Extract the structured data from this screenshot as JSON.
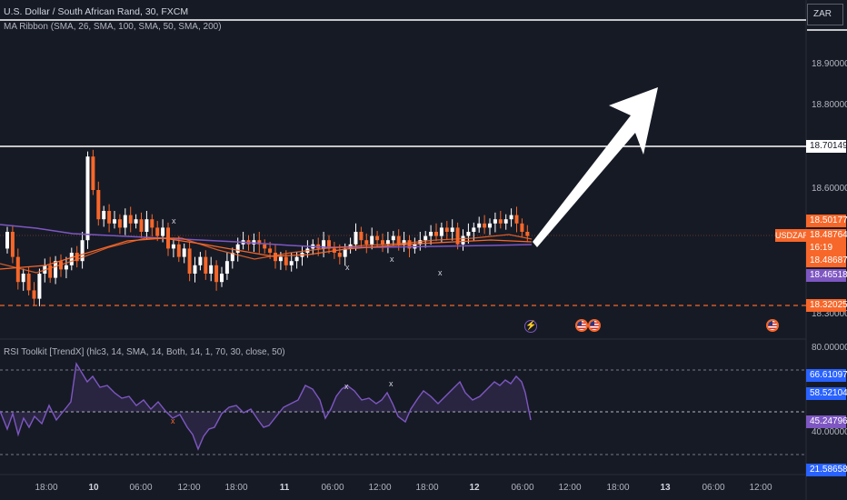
{
  "header": {
    "title": "U.S. Dollar / South African Rand, 30, FXCM",
    "indicator": "MA Ribbon (SMA, 26, SMA, 100, SMA, 50, SMA, 200)",
    "rsi_indicator": "RSI Toolkit [TrendX] (hlc3, 14, SMA, 14, Both, 14, 1, 70, 30, close, 50)"
  },
  "currency_button": "ZAR",
  "price_axis": {
    "ticks": [
      "18.90000",
      "18.80000",
      "18.60000",
      "18.30000"
    ],
    "tick_values": [
      18.9,
      18.8,
      18.6,
      18.3
    ],
    "labels": {
      "line_level": "18.70149",
      "price1": "18.50177",
      "price2": "18.48764",
      "countdown": "16:19",
      "price3": "18.48687",
      "ma_value": "18.46518",
      "dashed_level": "18.32025"
    },
    "symbol_tag": "USDZAR"
  },
  "rsi_axis": {
    "ticks": [
      "80.00000",
      "40.00000"
    ],
    "labels": {
      "upper": "66.61097",
      "mid": "58.52104",
      "value": "45.24796",
      "lower": "21.58658"
    }
  },
  "time_axis": [
    "18:00",
    "10",
    "06:00",
    "12:00",
    "18:00",
    "11",
    "06:00",
    "12:00",
    "18:00",
    "12",
    "06:00",
    "12:00",
    "18:00",
    "13",
    "06:00",
    "12:00"
  ],
  "time_axis_bold": [
    false,
    true,
    false,
    false,
    false,
    true,
    false,
    false,
    false,
    true,
    false,
    false,
    false,
    true,
    false,
    false
  ],
  "markers": {
    "x": "x"
  },
  "colors": {
    "background": "#161a25",
    "up_candle": "#ffffff",
    "down_candle": "#f7672a",
    "ma_fast": "#f7672a",
    "ma_slow": "#7e57c2",
    "rsi_line": "#7e57c2",
    "level_line": "#ffffff",
    "dashed_level": "#f7672a"
  },
  "icons": [
    "lightning-event-icon",
    "us-flag-event-icon"
  ],
  "annotation": "white-arrow-up-right"
}
